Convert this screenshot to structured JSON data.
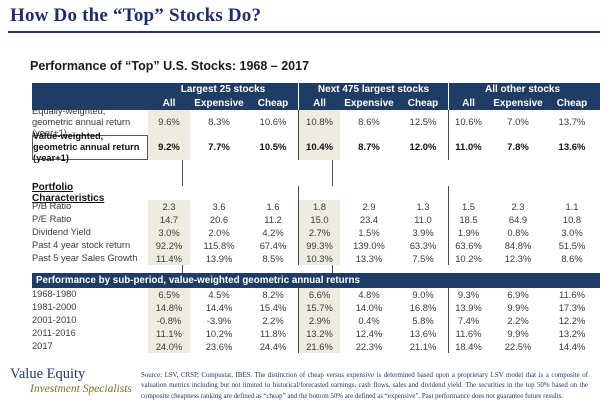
{
  "title": "How Do the “Top” Stocks Do?",
  "subtitle": "Performance of “Top” U.S. Stocks: 1968 – 2017",
  "colors": {
    "header_navy": "#1f3c64",
    "title_navy": "#1f2d69",
    "shaded_column_beige": "#eeebe0",
    "brand_olive": "#7c7024"
  },
  "table": {
    "groups": [
      "Largest 25 stocks",
      "Next 475 largest stocks",
      "All other stocks"
    ],
    "subheaders": [
      "All",
      "Expensive",
      "Cheap"
    ],
    "return_rows": [
      {
        "label": "Equally-weighted, geometric annual return (year+1)",
        "bold": false,
        "values": [
          "9.6%",
          "8.3%",
          "10.6%",
          "10.8%",
          "8.6%",
          "12.5%",
          "10.6%",
          "7.0%",
          "13.7%"
        ]
      },
      {
        "label": "Value-weighted, geometric annual return (year+1)",
        "bold": true,
        "values": [
          "9.2%",
          "7.7%",
          "10.5%",
          "10.4%",
          "8.7%",
          "12.0%",
          "11.0%",
          "7.8%",
          "13.6%"
        ]
      }
    ],
    "portfolio_section_title": "Portfolio Characteristics",
    "portfolio_rows": [
      {
        "label": "P/B Ratio",
        "values": [
          "2.3",
          "3.6",
          "1.6",
          "1.8",
          "2.9",
          "1.3",
          "1.5",
          "2.3",
          "1.1"
        ]
      },
      {
        "label": "P/E Ratio",
        "values": [
          "14.7",
          "20.6",
          "11.2",
          "15.0",
          "23.4",
          "11.0",
          "18.5",
          "64.9",
          "10.8"
        ]
      },
      {
        "label": "Dividend Yield",
        "values": [
          "3.0%",
          "2.0%",
          "4.2%",
          "2.7%",
          "1.5%",
          "3.9%",
          "1.9%",
          "0.8%",
          "3.0%"
        ]
      },
      {
        "label": "Past 4 year stock return",
        "values": [
          "92.2%",
          "115.8%",
          "67.4%",
          "99.3%",
          "139.0%",
          "63.3%",
          "63.6%",
          "84.8%",
          "51.5%"
        ]
      },
      {
        "label": "Past 5 year Sales Growth",
        "values": [
          "11.4%",
          "13.9%",
          "8.5%",
          "10.3%",
          "13.3%",
          "7.5%",
          "10.2%",
          "12.3%",
          "8.6%"
        ]
      }
    ],
    "subperiod_header": "Performance by sub-period, value-weighted geometric annual returns",
    "subperiod_rows": [
      {
        "label": "1968-1980",
        "values": [
          "6.5%",
          "4.5%",
          "8.2%",
          "6.6%",
          "4.8%",
          "9.0%",
          "9.3%",
          "6.9%",
          "11.6%"
        ]
      },
      {
        "label": "1981-2000",
        "values": [
          "14.8%",
          "14.4%",
          "15.4%",
          "15.7%",
          "14.0%",
          "16.8%",
          "13.9%",
          "9.9%",
          "17.3%"
        ]
      },
      {
        "label": "2001-2010",
        "values": [
          "-0.8%",
          "-3.9%",
          "2.2%",
          "2.9%",
          "0.4%",
          "5.8%",
          "7.4%",
          "2.2%",
          "12.2%"
        ]
      },
      {
        "label": "2011-2016",
        "values": [
          "11.1%",
          "10.2%",
          "11.8%",
          "13.2%",
          "12.4%",
          "13.6%",
          "11.6%",
          "9.9%",
          "13.2%"
        ]
      },
      {
        "label": "2017",
        "values": [
          "24.0%",
          "23.6%",
          "24.4%",
          "21.6%",
          "22.3%",
          "21.1%",
          "18.4%",
          "22.5%",
          "14.4%"
        ]
      }
    ]
  },
  "footer": {
    "brand_line1": "Value Equity",
    "brand_line2": "Investment Specialists",
    "source_text": "Source: LSV, CRSP, Compustat, IBES.  The distinction of cheap versus expensive is determined based upon a proprietary LSV model that is a composite of valuation metrics including but not limited to historical/forecasted earnings, cash flows, sales and dividend yield. The securities in the top 50% based on the composite cheapness ranking are defined as “cheap” and the bottom 50% are defined as “expensive”. Past performance does not guarantee future results."
  }
}
